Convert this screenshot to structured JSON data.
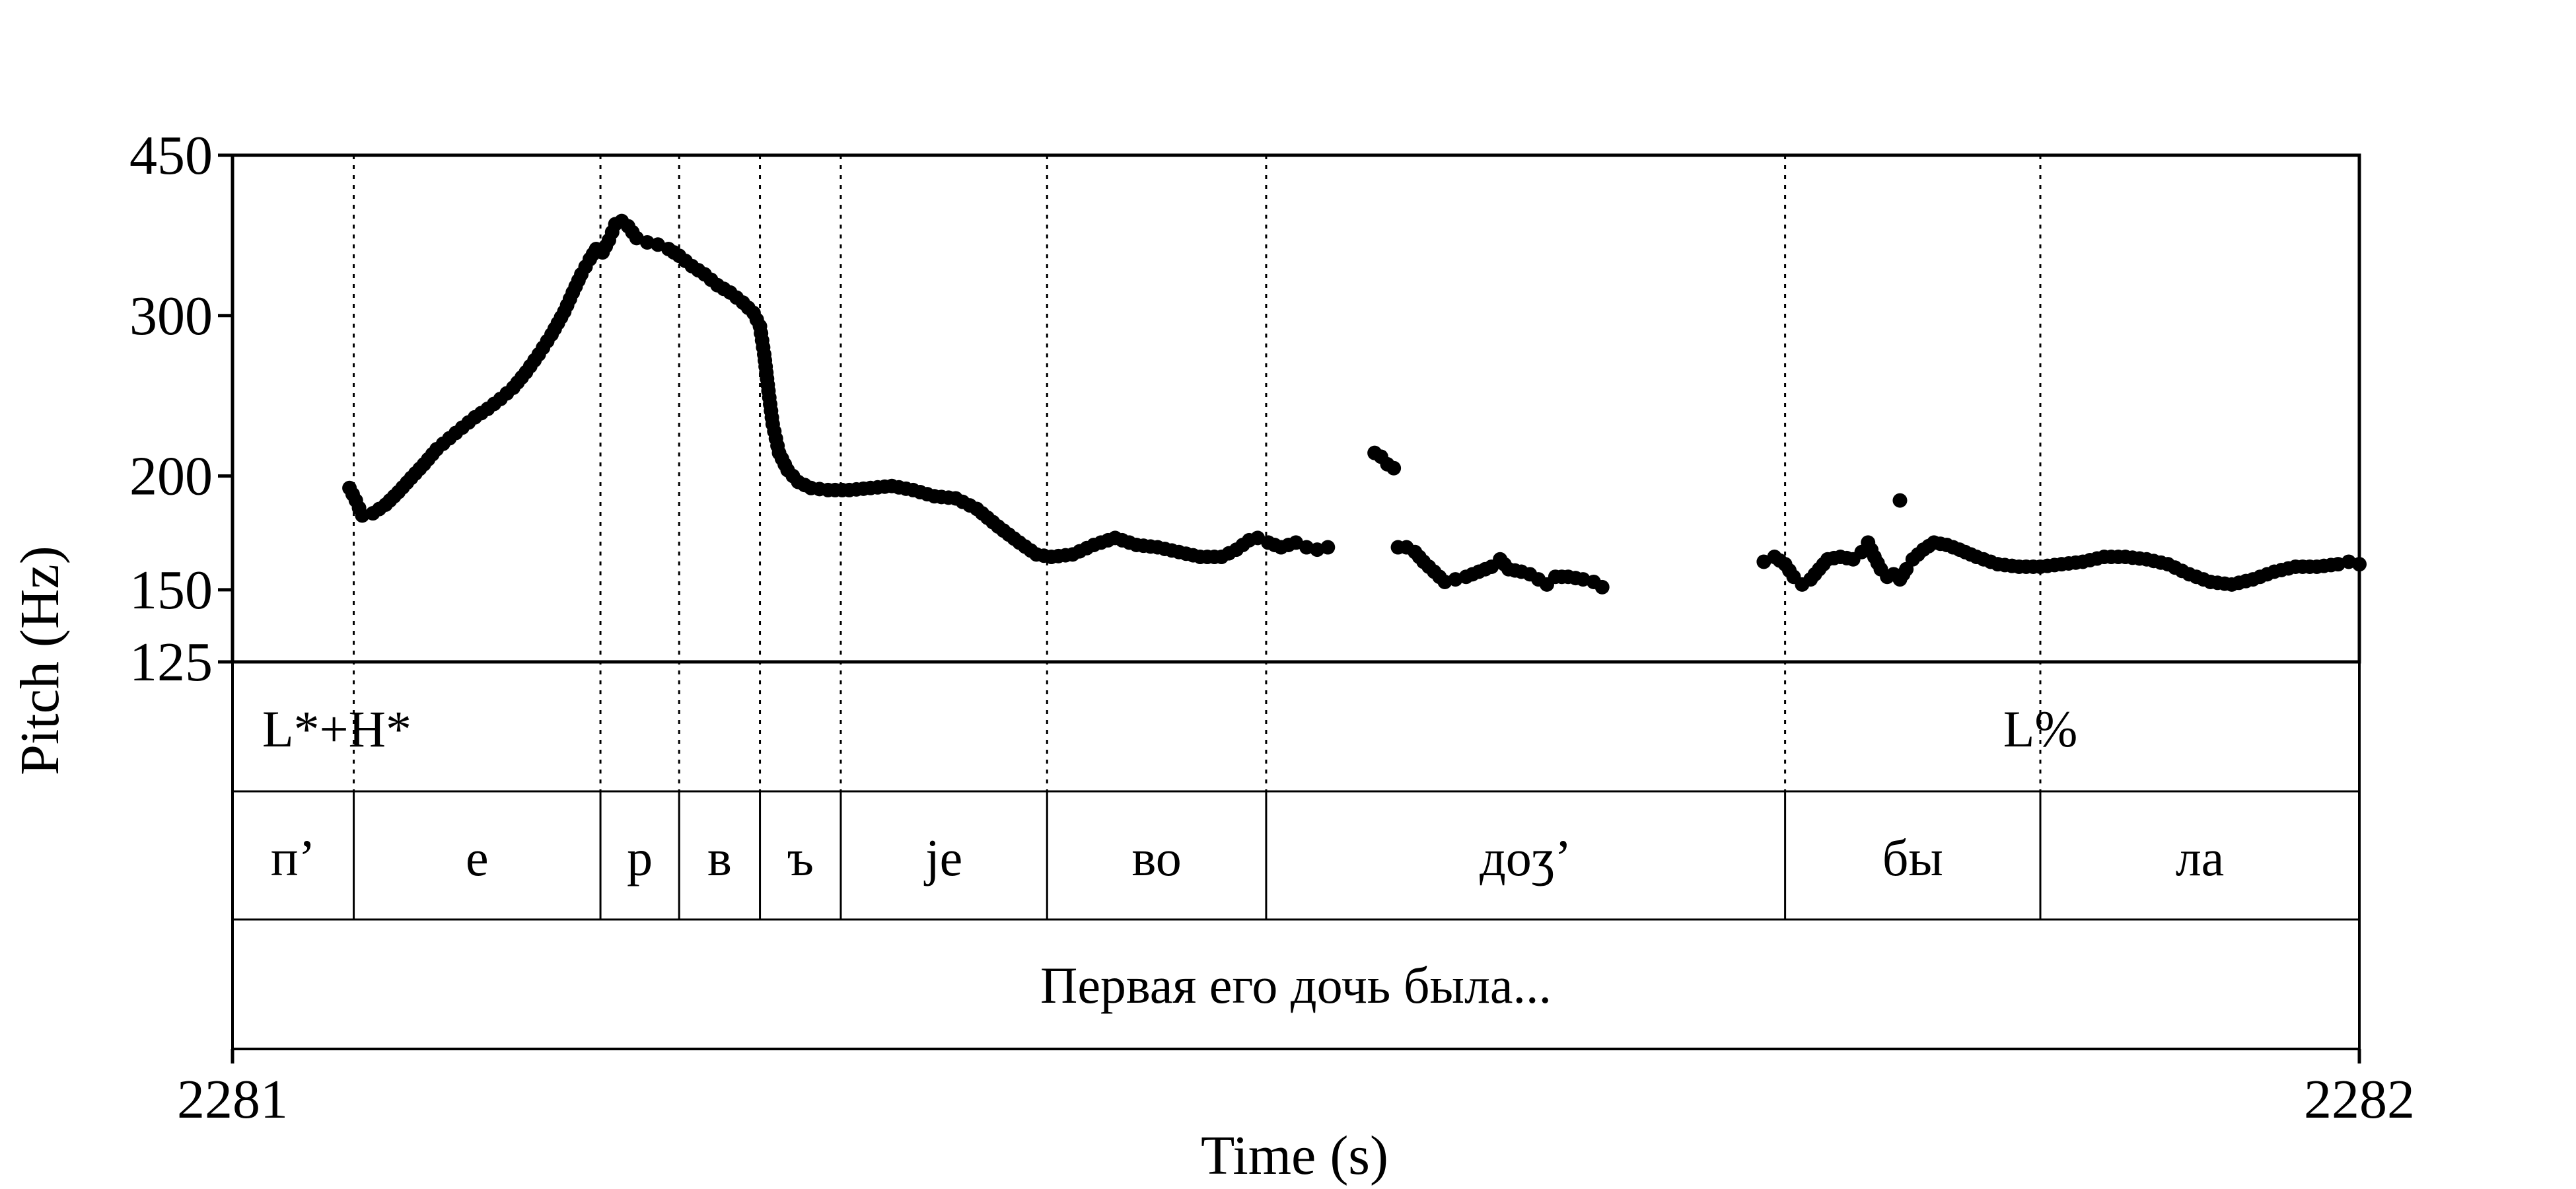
{
  "chart_data": {
    "type": "scatter",
    "title": "",
    "xlabel": "Time (s)",
    "ylabel": "Pitch (Hz)",
    "xlim": [
      2281,
      2282
    ],
    "ylim": [
      125,
      450
    ],
    "yscale": "log",
    "x_ticks": [
      {
        "value": 2281,
        "label": "2281"
      },
      {
        "value": 2282,
        "label": "2282"
      }
    ],
    "y_ticks": [
      {
        "value": 450,
        "label": "450"
      },
      {
        "value": 300,
        "label": "300"
      },
      {
        "value": 200,
        "label": "200"
      },
      {
        "value": 150,
        "label": "150"
      },
      {
        "value": 125,
        "label": "125"
      }
    ],
    "boundaries": [
      2281.057,
      2281.173,
      2281.21,
      2281.248,
      2281.286,
      2281.383,
      2281.486,
      2281.73,
      2281.85
    ],
    "tiers": [
      {
        "name": "tones",
        "intervals": [
          {
            "label": "L*+H*",
            "time": 2281.015
          },
          {
            "label": "L%",
            "time": 2281.85
          }
        ]
      },
      {
        "name": "phones",
        "intervals": [
          {
            "label": "п’",
            "start": 2281.0,
            "end": 2281.057
          },
          {
            "label": "е",
            "start": 2281.057,
            "end": 2281.173
          },
          {
            "label": "р",
            "start": 2281.173,
            "end": 2281.21
          },
          {
            "label": "в",
            "start": 2281.21,
            "end": 2281.248
          },
          {
            "label": "ъ",
            "start": 2281.248,
            "end": 2281.286
          },
          {
            "label": "je",
            "start": 2281.286,
            "end": 2281.383
          },
          {
            "label": "во",
            "start": 2281.383,
            "end": 2281.486
          },
          {
            "label": "доʒ’",
            "start": 2281.486,
            "end": 2281.73
          },
          {
            "label": "бы",
            "start": 2281.73,
            "end": 2281.85
          },
          {
            "label": "ла",
            "start": 2281.85,
            "end": 2282.0
          }
        ]
      },
      {
        "name": "sentence",
        "intervals": [
          {
            "label": "Первая его дочь была...",
            "start": 2281.0,
            "end": 2282.0
          }
        ]
      }
    ],
    "series": [
      {
        "segments": [
          [
            [
              2281.055,
              194
            ],
            [
              2281.058,
              188
            ],
            [
              2281.061,
              181
            ],
            [
              2281.066,
              182
            ],
            [
              2281.072,
              186
            ],
            [
              2281.078,
              192
            ],
            [
              2281.084,
              199
            ],
            [
              2281.09,
              206
            ],
            [
              2281.096,
              214
            ],
            [
              2281.102,
              220
            ],
            [
              2281.108,
              226
            ],
            [
              2281.114,
              232
            ],
            [
              2281.12,
              237
            ],
            [
              2281.126,
              243
            ],
            [
              2281.132,
              250
            ],
            [
              2281.138,
              260
            ],
            [
              2281.144,
              272
            ],
            [
              2281.15,
              286
            ],
            [
              2281.156,
              303
            ],
            [
              2281.16,
              318
            ],
            [
              2281.164,
              333
            ],
            [
              2281.168,
              346
            ],
            [
              2281.171,
              355
            ],
            [
              2281.174,
              352
            ],
            [
              2281.177,
              363
            ],
            [
              2281.18,
              378
            ],
            [
              2281.183,
              381
            ],
            [
              2281.186,
              376
            ],
            [
              2281.19,
              365
            ],
            [
              2281.195,
              361
            ],
            [
              2281.2,
              359
            ],
            [
              2281.205,
              355
            ],
            [
              2281.21,
              349
            ],
            [
              2281.216,
              340
            ],
            [
              2281.222,
              333
            ],
            [
              2281.228,
              324
            ],
            [
              2281.234,
              318
            ],
            [
              2281.24,
              310
            ],
            [
              2281.245,
              302
            ],
            [
              2281.248,
              292
            ],
            [
              2281.25,
              272
            ],
            [
              2281.252,
              248
            ],
            [
              2281.254,
              228
            ],
            [
              2281.257,
              212
            ],
            [
              2281.261,
              203
            ],
            [
              2281.266,
              197
            ],
            [
              2281.272,
              194
            ],
            [
              2281.28,
              193
            ],
            [
              2281.29,
              193
            ],
            [
              2281.3,
              194
            ],
            [
              2281.31,
              195
            ],
            [
              2281.32,
              193
            ],
            [
              2281.33,
              190
            ],
            [
              2281.34,
              189
            ],
            [
              2281.35,
              184
            ],
            [
              2281.36,
              176
            ],
            [
              2281.37,
              169
            ],
            [
              2281.378,
              164
            ],
            [
              2281.385,
              163
            ],
            [
              2281.395,
              164
            ],
            [
              2281.405,
              168
            ],
            [
              2281.415,
              171
            ],
            [
              2281.425,
              168
            ],
            [
              2281.435,
              167
            ],
            [
              2281.445,
              165
            ],
            [
              2281.455,
              163
            ],
            [
              2281.465,
              163
            ],
            [
              2281.472,
              166
            ],
            [
              2281.478,
              170
            ],
            [
              2281.482,
              171
            ],
            [
              2281.487,
              169
            ],
            [
              2281.493,
              167
            ],
            [
              2281.5,
              169
            ],
            [
              2281.505,
              167
            ],
            [
              2281.51,
              166
            ],
            [
              2281.515,
              167
            ]
          ],
          [
            [
              2281.537,
              212
            ],
            [
              2281.54,
              210
            ],
            [
              2281.543,
              206
            ],
            [
              2281.546,
              204
            ]
          ],
          [
            [
              2281.548,
              167
            ],
            [
              2281.552,
              167
            ],
            [
              2281.556,
              165
            ],
            [
              2281.56,
              161
            ],
            [
              2281.565,
              157
            ],
            [
              2281.57,
              153
            ],
            [
              2281.575,
              154
            ],
            [
              2281.58,
              155
            ],
            [
              2281.586,
              157
            ],
            [
              2281.592,
              159
            ],
            [
              2281.596,
              162
            ],
            [
              2281.6,
              158
            ],
            [
              2281.606,
              157
            ],
            [
              2281.61,
              156
            ],
            [
              2281.614,
              154
            ],
            [
              2281.618,
              152
            ],
            [
              2281.622,
              155
            ],
            [
              2281.628,
              155
            ],
            [
              2281.635,
              154
            ],
            [
              2281.64,
              153
            ],
            [
              2281.644,
              151
            ]
          ],
          [
            [
              2281.72,
              161
            ],
            [
              2281.725,
              163
            ],
            [
              2281.73,
              160
            ],
            [
              2281.734,
              155
            ],
            [
              2281.738,
              152
            ],
            [
              2281.742,
              154
            ],
            [
              2281.746,
              158
            ],
            [
              2281.75,
              162
            ],
            [
              2281.756,
              163
            ],
            [
              2281.762,
              162
            ],
            [
              2281.766,
              165
            ],
            [
              2281.769,
              169
            ],
            [
              2281.772,
              163
            ],
            [
              2281.775,
              158
            ],
            [
              2281.778,
              155
            ],
            [
              2281.781,
              156
            ],
            [
              2281.784,
              154
            ],
            [
              2281.787,
              158
            ],
            [
              2281.79,
              162
            ],
            [
              2281.795,
              166
            ],
            [
              2281.8,
              169
            ],
            [
              2281.806,
              168
            ],
            [
              2281.812,
              166
            ],
            [
              2281.82,
              163
            ],
            [
              2281.83,
              160
            ],
            [
              2281.84,
              159
            ],
            [
              2281.85,
              159
            ],
            [
              2281.86,
              160
            ],
            [
              2281.87,
              161
            ],
            [
              2281.88,
              163
            ],
            [
              2281.89,
              163
            ],
            [
              2281.9,
              162
            ],
            [
              2281.91,
              160
            ],
            [
              2281.92,
              156
            ],
            [
              2281.93,
              153
            ],
            [
              2281.94,
              152
            ],
            [
              2281.95,
              154
            ],
            [
              2281.96,
              157
            ],
            [
              2281.97,
              159
            ],
            [
              2281.98,
              159
            ],
            [
              2281.99,
              160
            ],
            [
              2281.995,
              161
            ],
            [
              2282.0,
              160
            ]
          ]
        ],
        "outliers": [
          [
            2281.784,
            188
          ]
        ]
      }
    ]
  }
}
